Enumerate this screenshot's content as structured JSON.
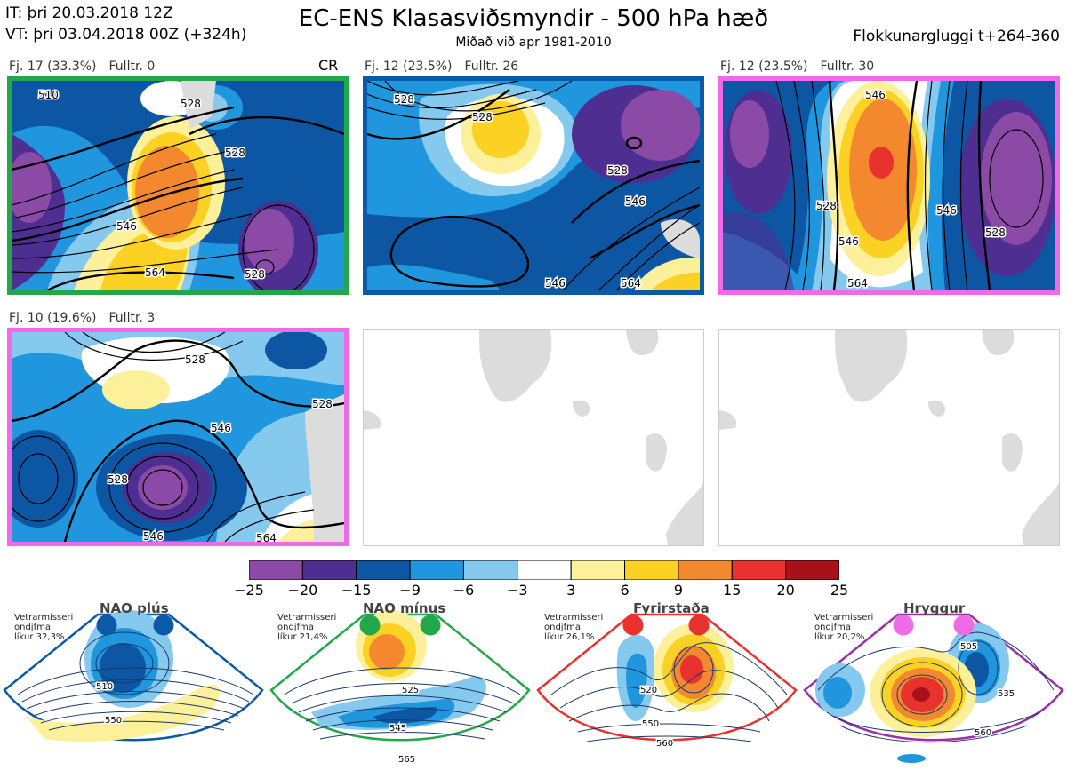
{
  "header": {
    "it": "IT: þri 20.03.2018 12Z",
    "vt": "VT: þri 03.04.2018 00Z  (+324h)",
    "title": "EC-ENS Klasasviðsmyndir - 500 hPa hæð",
    "subtitle": "Miðað við apr 1981-2010",
    "window": "Flokkunargluggi t+264-360"
  },
  "panels": [
    {
      "label_a": "Fj. 17 (33.3%)",
      "label_b": "Fulltr. 0",
      "tag": "CR",
      "frame_color": "#22a84a",
      "contours": [
        "510",
        "528",
        "528",
        "546",
        "564",
        "528"
      ]
    },
    {
      "label_a": "Fj. 12 (23.5%)",
      "label_b": "Fulltr. 26",
      "tag": "",
      "frame_color": "#0a5aa8",
      "contours": [
        "528",
        "528",
        "528",
        "546",
        "546",
        "564"
      ]
    },
    {
      "label_a": "Fj. 12 (23.5%)",
      "label_b": "Fulltr. 30",
      "tag": "",
      "frame_color": "#f06ae8",
      "contours": [
        "546",
        "528",
        "546",
        "546",
        "528",
        "564"
      ]
    },
    {
      "label_a": "Fj. 10 (19.6%)",
      "label_b": "Fulltr. 3",
      "tag": "",
      "frame_color": "#f06ae8",
      "contours": [
        "528",
        "528",
        "546",
        "528",
        "546",
        "564"
      ]
    },
    {
      "label_a": "",
      "label_b": "",
      "tag": "",
      "frame_color": "#cccccc",
      "contours": []
    },
    {
      "label_a": "",
      "label_b": "",
      "tag": "",
      "frame_color": "#cccccc",
      "contours": []
    }
  ],
  "colorbar": {
    "ticks": [
      "−25",
      "−20",
      "−15",
      "−9",
      "−6",
      "−3",
      "3",
      "6",
      "9",
      "15",
      "20",
      "25"
    ],
    "colors": [
      "#8a4aa6",
      "#4f2e92",
      "#0d56a3",
      "#1f96de",
      "#86c9ef",
      "#ffffff",
      "#fdf09b",
      "#fbd124",
      "#f3882f",
      "#e8322e",
      "#a8101a"
    ]
  },
  "regimes": [
    {
      "name": "NAO plús",
      "note": "Vetrarmisseri\nondjfma\nlíkur 32,3%",
      "color": "#0a5aa8",
      "contours": [
        "510",
        "550"
      ]
    },
    {
      "name": "NAO mínus",
      "note": "Vetrarmisseri\nondjfma\nlíkur 21,4%",
      "color": "#22a84a",
      "contours": [
        "525",
        "545",
        "565"
      ]
    },
    {
      "name": "Fyrirstaða",
      "note": "Vetrarmisseri\nondjfma\nlíkur 26,1%",
      "color": "#e8322e",
      "contours": [
        "520",
        "550",
        "560"
      ]
    },
    {
      "name": "Hryggur",
      "note": "Vetrarmisseri\nondjfma\nlíkur 20,2%",
      "color": "#9b2fa8",
      "contours": [
        "505",
        "535",
        "560"
      ]
    }
  ]
}
